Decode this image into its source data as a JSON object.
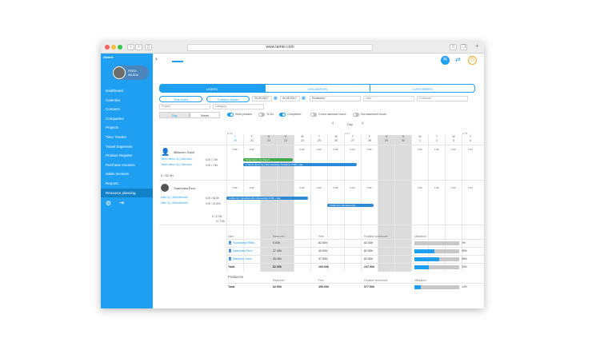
{
  "browser": {
    "url": "www.tamer.com"
  },
  "sidebar": {
    "brand": "Hedeit",
    "profile": {
      "name": "FREDI",
      "role": "MILENA"
    },
    "items": [
      {
        "label": "Dashboard"
      },
      {
        "label": "Calendar"
      },
      {
        "label": "Contacts"
      },
      {
        "label": "Companies"
      },
      {
        "label": "Projects"
      },
      {
        "label": "Time Tracker"
      },
      {
        "label": "Travel Expenses"
      },
      {
        "label": "Product Register"
      },
      {
        "label": "Purchase Invoices"
      },
      {
        "label": "Sales Invoices"
      },
      {
        "label": "Reports"
      },
      {
        "label": "Resource planning",
        "active": true
      }
    ]
  },
  "tabs": [
    {
      "label": "USERS",
      "active": true
    },
    {
      "label": "UTILIZATION"
    },
    {
      "label": "CUSTOMERS"
    }
  ],
  "filters": {
    "this_week": "This week",
    "two_weeks": "2 weeks ahead",
    "date_from": "20.03.2017",
    "date_to": "04.05.2017",
    "group": "Producers",
    "user": "User",
    "customer": "Customer",
    "project": "Project",
    "category": "Category"
  },
  "view": {
    "day": "Day",
    "week": "Week"
  },
  "toggles": [
    {
      "label": "Work phases",
      "on": true
    },
    {
      "label": "To Do",
      "on": false
    },
    {
      "label": "Completed",
      "on": true
    },
    {
      "label": "Count calendar hours",
      "on": false
    },
    {
      "label": "Not assessed hours",
      "on": false
    }
  ],
  "nav": {
    "prev": "‹",
    "label": "Day",
    "next": "›"
  },
  "week_labels": [
    "w 16",
    "w 17",
    "w 18"
  ],
  "days": [
    {
      "wd": "T",
      "d": "20",
      "today": true
    },
    {
      "wd": "F",
      "d": "21"
    },
    {
      "wd": "S",
      "d": "22",
      "weekend": true
    },
    {
      "wd": "S",
      "d": "23",
      "weekend": true
    },
    {
      "wd": "M",
      "d": "24"
    },
    {
      "wd": "T",
      "d": "25"
    },
    {
      "wd": "W",
      "d": "26"
    },
    {
      "wd": "T",
      "d": "27"
    },
    {
      "wd": "F",
      "d": "28"
    },
    {
      "wd": "S",
      "d": "29",
      "weekend": true
    },
    {
      "wd": "S",
      "d": "30",
      "weekend": true
    },
    {
      "wd": "M",
      "d": "1"
    },
    {
      "wd": "T",
      "d": "2"
    },
    {
      "wd": "W",
      "d": "3"
    },
    {
      "wd": "T",
      "d": "4"
    }
  ],
  "people": [
    {
      "name": "Mikkinen Sami",
      "links": [
        "Tamer demo Oy | New busi...",
        "Tamer demo Oy | New busi..."
      ],
      "hours1": "0.00 / 7.5h",
      "hours2": "0.00 / 7.5h",
      "row_vals": [
        "0.00",
        "0.00",
        "",
        "",
        "0.00",
        "0.00",
        "0.00",
        "0.00",
        "0.00",
        "",
        "",
        "7.00",
        "7.00",
        "7.00",
        "7.00"
      ],
      "bars": [
        {
          "label": "Tamer demo Oy | New b...",
          "color": "green"
        },
        {
          "label": "● Tamer demo Oy | New branding | Toukokuu 7.50h + day",
          "color": "blue"
        }
      ]
    },
    {
      "name": "Saarinalia Eero",
      "capacity": "0 / 52.5h",
      "links": [
        "Alkio Oy | Simerbers/AS",
        "Alkio Oy | Simerbers/AS"
      ],
      "hours1": "0.00 / 52.5h",
      "hours2": "0.00 / 22.50h",
      "hours3": "0 / 37.5h",
      "hours4": "0 / 7.5h",
      "row_vals": [
        "0.00",
        "0.00",
        "",
        "",
        "0.00",
        "0.00",
        "0.00",
        "0.00",
        "0.00",
        "",
        "",
        "7.00",
        "7.00",
        "7.00",
        "7.00"
      ],
      "bars": [
        {
          "label": "● Alkio Oy | Simerbers/AS | Alkuselvitys 0.00h + day",
          "color": "blue"
        },
        {
          "label": "● Alkio Oy | Simerbers/AS ...",
          "color": "blue"
        }
      ]
    }
  ],
  "producers": {
    "title": "Producers",
    "headers": [
      "User",
      "Reserved",
      "Free",
      "Possible workhours",
      "Utilization"
    ],
    "rows": [
      {
        "user": "Tuomalinja Riitta",
        "reserved": "0.00h",
        "free": "82.50h",
        "possible": "82.50h",
        "util": 0,
        "util_label": "0%"
      },
      {
        "user": "Saarinalia Eero",
        "reserved": "37.50h",
        "free": "45.00h",
        "possible": "82.50h",
        "util": 45,
        "util_label": "45%"
      },
      {
        "user": "Mikkinen Sami",
        "reserved": "45.00h",
        "free": "37.50h",
        "possible": "82.50h",
        "util": 55,
        "util_label": "55%"
      }
    ],
    "total": {
      "label": "Total",
      "reserved": "82.50h",
      "free": "165.00h",
      "possible": "247.50h",
      "util": 33,
      "util_label": "33%"
    }
  },
  "grand_total": {
    "headers": [
      "Reserved",
      "Free",
      "Possible workhours",
      "Utilization"
    ],
    "label": "Total",
    "reserved": "82.50h",
    "free": "495.00h",
    "possible": "577.50h",
    "util": 14,
    "util_label": "14%"
  },
  "colors": {
    "accent": "#1e9ff2",
    "sidebar": "#1e9ff2",
    "green": "#3faa49",
    "orange": "#f4a623"
  }
}
